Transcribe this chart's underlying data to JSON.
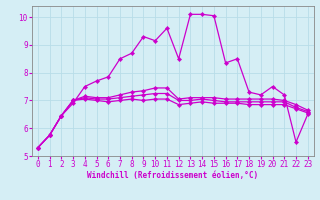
{
  "xlabel": "Windchill (Refroidissement éolien,°C)",
  "xlim": [
    -0.5,
    23.5
  ],
  "ylim": [
    5,
    10.4
  ],
  "xtick_vals": [
    0,
    1,
    2,
    3,
    4,
    5,
    6,
    7,
    8,
    9,
    10,
    11,
    12,
    13,
    14,
    15,
    16,
    17,
    18,
    19,
    20,
    21,
    22,
    23
  ],
  "ytick_vals": [
    5,
    6,
    7,
    8,
    9,
    10
  ],
  "background_color": "#d5eef5",
  "grid_color": "#b8dde8",
  "line_color": "#cc00cc",
  "spine_color": "#888888",
  "lines": [
    [
      5.3,
      5.75,
      6.45,
      6.9,
      7.5,
      7.7,
      7.85,
      8.5,
      8.7,
      9.3,
      9.15,
      9.6,
      8.5,
      10.1,
      10.1,
      10.05,
      8.35,
      8.5,
      7.3,
      7.2,
      7.5,
      7.2,
      5.5,
      6.5
    ],
    [
      5.3,
      5.75,
      6.45,
      7.0,
      7.05,
      7.0,
      6.95,
      7.0,
      7.05,
      7.0,
      7.05,
      7.05,
      6.85,
      6.9,
      6.95,
      6.9,
      6.9,
      6.9,
      6.85,
      6.85,
      6.85,
      6.85,
      6.7,
      6.55
    ],
    [
      5.3,
      5.75,
      6.45,
      7.0,
      7.1,
      7.05,
      7.05,
      7.1,
      7.15,
      7.2,
      7.25,
      7.25,
      7.0,
      7.0,
      7.05,
      7.0,
      6.95,
      6.95,
      6.95,
      6.95,
      6.95,
      6.95,
      6.75,
      6.6
    ],
    [
      5.3,
      5.75,
      6.45,
      7.0,
      7.15,
      7.1,
      7.1,
      7.2,
      7.3,
      7.35,
      7.45,
      7.45,
      7.05,
      7.1,
      7.1,
      7.1,
      7.05,
      7.05,
      7.05,
      7.05,
      7.05,
      7.0,
      6.85,
      6.65
    ]
  ],
  "marker": "D",
  "marker_size": 2.2,
  "line_width": 0.9,
  "tick_fontsize": 5.5,
  "label_fontsize": 5.5
}
